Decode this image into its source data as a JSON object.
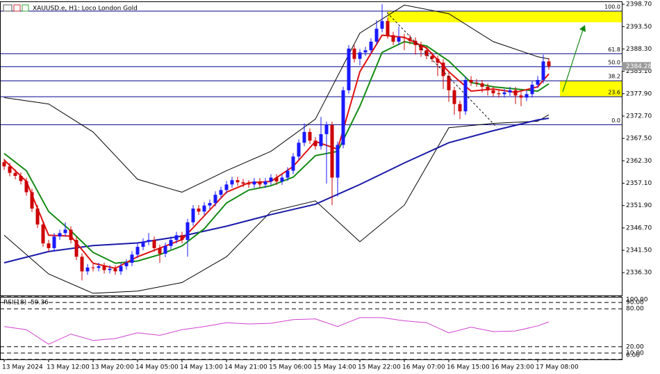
{
  "chart_data": {
    "type": "candlestick",
    "title": "XAUUSD.e, H1: Loco London Gold",
    "up_color": "#1a1aff",
    "down_color": "#cc0000",
    "ylim": [
      2331.0,
      2399.2
    ],
    "yticks": [
      {
        "value": 2398.7,
        "label": "2398.70"
      },
      {
        "value": 2393.5,
        "label": "2393.50"
      },
      {
        "value": 2388.3,
        "label": "2388.30"
      },
      {
        "value": 2383.1,
        "label": "2383.10"
      },
      {
        "value": 2377.9,
        "label": "2377.90"
      },
      {
        "value": 2372.7,
        "label": "2372.70"
      },
      {
        "value": 2367.5,
        "label": "2367.50"
      },
      {
        "value": 2362.3,
        "label": "2362.30"
      },
      {
        "value": 2357.1,
        "label": "2357.10"
      },
      {
        "value": 2351.9,
        "label": "2351.90"
      },
      {
        "value": 2346.7,
        "label": "2346.70"
      },
      {
        "value": 2341.5,
        "label": "2341.50"
      },
      {
        "value": 2336.3,
        "label": "2336.30"
      }
    ],
    "categories": [
      "13 May 2024",
      null,
      null,
      null,
      null,
      null,
      null,
      null,
      "13 May 12:00",
      null,
      null,
      null,
      null,
      null,
      null,
      null,
      "13 May 20:00",
      null,
      null,
      null,
      null,
      null,
      null,
      null,
      "14 May 05:00",
      null,
      null,
      null,
      null,
      null,
      null,
      null,
      "14 May 13:00",
      null,
      null,
      null,
      null,
      null,
      null,
      null,
      "14 May 21:00",
      null,
      null,
      null,
      null,
      null,
      null,
      null,
      "15 May 06:00",
      null,
      null,
      null,
      null,
      null,
      null,
      null,
      "15 May 14:00",
      null,
      null,
      null,
      null,
      null,
      null,
      null,
      "15 May 22:00",
      null,
      null,
      null,
      null,
      null,
      null,
      null,
      "16 May 07:00",
      null,
      null,
      null,
      null,
      null,
      null,
      null,
      "16 May 15:00",
      null,
      null,
      null,
      null,
      null,
      null,
      null,
      "16 May 23:00",
      null,
      null,
      null,
      null,
      null,
      null,
      null,
      "17 May 08:00",
      null,
      null
    ],
    "open": [
      2362.0,
      2361.0,
      2359.5,
      2358.8,
      2357.6,
      2355.0,
      2351.2,
      2347.5,
      2343.1,
      2342.0,
      2344.7,
      2345.5,
      2346.3,
      2343.9,
      2340.0,
      2336.6,
      2337.5,
      2337.4,
      2337.8,
      2336.9,
      2337.2,
      2336.6,
      2337.8,
      2338.6,
      2340.5,
      2342.3,
      2343.5,
      2343.9,
      2342.0,
      2340.7,
      2342.5,
      2343.9,
      2345.0,
      2343.9,
      2348.0,
      2351.2,
      2350.5,
      2351.9,
      2352.5,
      2354.4,
      2355.5,
      2356.8,
      2357.8,
      2357.3,
      2357.0,
      2356.8,
      2357.5,
      2356.8,
      2357.5,
      2358.4,
      2357.5,
      2358.4,
      2360.0,
      2363.3,
      2366.5,
      2369.0,
      2367.0,
      2365.7,
      2368.5,
      2370.6,
      2358.4,
      2366.0,
      2378.7,
      2388.4,
      2386.0,
      2387.5,
      2388.0,
      2390.0,
      2393.0,
      2394.8,
      2391.5,
      2390.0,
      2391.0,
      2390.8,
      2390.2,
      2389.2,
      2388.0,
      2386.7,
      2386.0,
      2385.1,
      2382.0,
      2378.7,
      2375.5,
      2373.8,
      2381.1,
      2380.5,
      2380.3,
      2379.5,
      2378.7,
      2378.0,
      2377.8,
      2378.2,
      2378.7,
      2377.5,
      2377.0,
      2377.8,
      2380.0,
      2381.1,
      2385.4
    ],
    "high": [
      2362.8,
      2361.8,
      2360.3,
      2359.6,
      2358.4,
      2355.8,
      2352.0,
      2348.3,
      2343.9,
      2345.5,
      2346.3,
      2348.0,
      2347.1,
      2344.7,
      2340.8,
      2338.3,
      2338.3,
      2338.6,
      2338.6,
      2338.0,
      2338.0,
      2338.6,
      2339.4,
      2341.3,
      2343.1,
      2344.3,
      2345.5,
      2344.7,
      2342.8,
      2343.3,
      2344.7,
      2345.8,
      2345.8,
      2348.8,
      2352.0,
      2352.0,
      2352.7,
      2353.3,
      2355.2,
      2356.3,
      2357.6,
      2358.6,
      2358.6,
      2358.1,
      2357.8,
      2358.3,
      2358.3,
      2358.3,
      2359.2,
      2359.2,
      2359.2,
      2360.8,
      2364.1,
      2367.3,
      2371.0,
      2369.8,
      2367.8,
      2372.5,
      2371.4,
      2371.4,
      2366.8,
      2379.5,
      2389.2,
      2389.2,
      2388.3,
      2388.8,
      2390.8,
      2395.0,
      2398.7,
      2395.6,
      2392.3,
      2393.5,
      2391.8,
      2391.6,
      2391.0,
      2390.0,
      2388.8,
      2387.5,
      2386.8,
      2385.9,
      2382.8,
      2379.5,
      2376.3,
      2381.9,
      2382.0,
      2381.3,
      2381.1,
      2380.3,
      2379.5,
      2378.8,
      2379.0,
      2379.5,
      2379.5,
      2378.3,
      2378.6,
      2380.8,
      2382.0,
      2387.0,
      2386.2
    ],
    "low": [
      2360.2,
      2358.7,
      2358.0,
      2356.8,
      2354.2,
      2350.4,
      2346.7,
      2342.3,
      2341.2,
      2341.2,
      2343.9,
      2344.7,
      2343.1,
      2339.2,
      2334.5,
      2335.8,
      2336.6,
      2336.6,
      2336.1,
      2336.1,
      2335.8,
      2335.8,
      2337.0,
      2337.8,
      2339.7,
      2341.5,
      2342.7,
      2341.2,
      2338.6,
      2339.9,
      2341.7,
      2343.1,
      2343.1,
      2340.0,
      2347.2,
      2349.7,
      2349.7,
      2351.1,
      2351.7,
      2353.6,
      2354.7,
      2356.0,
      2356.5,
      2356.2,
      2356.0,
      2356.0,
      2356.0,
      2356.0,
      2356.7,
      2356.7,
      2356.7,
      2357.6,
      2359.2,
      2362.5,
      2365.7,
      2366.2,
      2364.9,
      2364.9,
      2357.0,
      2352.0,
      2354.0,
      2365.2,
      2377.9,
      2385.2,
      2384.5,
      2386.7,
      2387.2,
      2389.2,
      2392.2,
      2390.7,
      2389.2,
      2389.2,
      2388.0,
      2389.4,
      2387.0,
      2386.5,
      2385.9,
      2385.2,
      2382.0,
      2379.0,
      2376.0,
      2373.0,
      2372.0,
      2373.0,
      2379.7,
      2379.5,
      2378.2,
      2377.5,
      2377.2,
      2377.0,
      2377.0,
      2377.4,
      2375.5,
      2375.0,
      2376.2,
      2377.0,
      2379.2,
      2380.3,
      2383.5
    ],
    "close": [
      2361.0,
      2359.5,
      2358.8,
      2357.6,
      2355.0,
      2351.2,
      2347.5,
      2343.1,
      2342.0,
      2344.7,
      2345.5,
      2346.3,
      2343.9,
      2340.0,
      2336.6,
      2337.5,
      2337.4,
      2337.8,
      2336.9,
      2337.2,
      2336.6,
      2337.8,
      2338.6,
      2340.5,
      2342.3,
      2343.5,
      2343.9,
      2342.0,
      2340.7,
      2342.5,
      2343.9,
      2345.0,
      2343.9,
      2348.0,
      2351.2,
      2350.5,
      2351.9,
      2352.5,
      2354.4,
      2355.5,
      2356.8,
      2357.8,
      2357.3,
      2357.0,
      2356.8,
      2357.5,
      2356.8,
      2357.5,
      2358.4,
      2357.5,
      2358.4,
      2360.0,
      2363.3,
      2366.5,
      2369.0,
      2367.0,
      2365.7,
      2368.5,
      2370.6,
      2358.4,
      2366.0,
      2378.7,
      2388.4,
      2386.0,
      2387.5,
      2388.0,
      2390.0,
      2393.0,
      2394.8,
      2391.5,
      2390.0,
      2391.0,
      2390.8,
      2390.2,
      2389.2,
      2388.0,
      2386.7,
      2386.0,
      2385.1,
      2382.0,
      2378.7,
      2375.5,
      2373.8,
      2381.1,
      2380.5,
      2380.3,
      2379.5,
      2378.7,
      2378.0,
      2377.8,
      2378.2,
      2378.7,
      2377.5,
      2377.0,
      2377.8,
      2380.0,
      2381.1,
      2385.4,
      2384.28
    ],
    "last_price": 2384.28,
    "overlays": [
      {
        "color": "#000000",
        "x": [
          0,
          8,
          16,
          24,
          32,
          40,
          48,
          56,
          64,
          72,
          80,
          88,
          96,
          98
        ],
        "values": [
          2377.0,
          2375.5,
          2369.0,
          2358.0,
          2355.0,
          2360.0,
          2364.5,
          2372.0,
          2392.0,
          2398.5,
          2396.5,
          2390.0,
          2386.5,
          2386.0
        ]
      },
      {
        "color": "#000000",
        "x": [
          0,
          8,
          16,
          24,
          32,
          40,
          48,
          56,
          64,
          72,
          80,
          88,
          96,
          98
        ],
        "values": [
          2345.0,
          2336.0,
          2331.5,
          2332.0,
          2334.0,
          2340.0,
          2350.5,
          2353.0,
          2343.5,
          2352.0,
          2370.0,
          2371.0,
          2371.5,
          2373.0
        ]
      },
      {
        "color": "#1a1aa8",
        "x": [
          0,
          8,
          16,
          24,
          32,
          40,
          48,
          56,
          64,
          72,
          80,
          88,
          96,
          98
        ],
        "values": [
          2338.6,
          2341.2,
          2342.6,
          2343.2,
          2344.8,
          2347.1,
          2349.8,
          2352.2,
          2356.8,
          2361.8,
          2366.5,
          2369.3,
          2371.8,
          2372.2
        ]
      },
      {
        "color": "#138a13",
        "x": [
          0,
          4,
          8,
          12,
          16,
          20,
          24,
          28,
          32,
          36,
          40,
          44,
          48,
          52,
          56,
          60,
          64,
          68,
          72,
          76,
          80,
          84,
          88,
          92,
          96,
          98
        ],
        "values": [
          2364.0,
          2360.0,
          2350.5,
          2346.0,
          2341.0,
          2338.5,
          2339.0,
          2340.5,
          2342.5,
          2346.5,
          2352.5,
          2355.5,
          2356.5,
          2358.5,
          2363.5,
          2364.5,
          2375.0,
          2387.5,
          2390.0,
          2389.0,
          2385.5,
          2380.5,
          2379.5,
          2379.0,
          2378.5,
          2380.2
        ]
      },
      {
        "color": "#e01010",
        "x": [
          0,
          4,
          8,
          12,
          16,
          20,
          24,
          28,
          32,
          36,
          40,
          44,
          48,
          52,
          56,
          60,
          64,
          68,
          72,
          76,
          80,
          84,
          88,
          92,
          96,
          98
        ],
        "values": [
          2362.5,
          2357.5,
          2345.0,
          2344.8,
          2338.5,
          2337.3,
          2340.0,
          2342.0,
          2344.0,
          2349.5,
          2355.0,
          2357.2,
          2357.5,
          2361.0,
          2366.8,
          2365.0,
          2383.0,
          2391.5,
          2391.0,
          2388.5,
          2383.0,
          2378.5,
          2379.0,
          2378.2,
          2379.5,
          2382.5
        ]
      }
    ],
    "zones": [
      {
        "low": 2394.5,
        "high": 2397.1,
        "start": 69
      },
      {
        "low": 2377.2,
        "high": 2380.9,
        "start": 100
      }
    ],
    "zone_color": "#ffff00",
    "fib_levels": [
      {
        "label": "100.0",
        "price": 2397.1
      },
      {
        "label": "61.8",
        "price": 2387.2
      },
      {
        "label": "50.0",
        "price": 2384.2
      },
      {
        "label": "38.2",
        "price": 2380.9
      },
      {
        "label": "23.6",
        "price": 2377.2
      },
      {
        "label": "0.0",
        "price": 2370.7
      }
    ],
    "fib_color": "#00008b",
    "rsi": {
      "label": "RSI(18)",
      "value": 59.36,
      "color": "#d040d0",
      "x": [
        0,
        4,
        8,
        12,
        16,
        20,
        24,
        28,
        32,
        36,
        40,
        44,
        48,
        52,
        56,
        60,
        64,
        68,
        72,
        76,
        80,
        84,
        88,
        92,
        96,
        98
      ],
      "values": [
        52,
        47,
        24,
        40,
        30,
        33,
        42,
        38,
        47,
        52,
        58,
        56,
        57,
        63,
        64,
        52,
        66,
        66,
        61,
        58,
        42,
        51,
        44,
        45,
        53,
        59.36
      ],
      "ylim": [
        0,
        100
      ],
      "yticks": [
        {
          "value": 100,
          "label": "100.00"
        },
        {
          "value": 90,
          "label": "90.00"
        },
        {
          "value": 80,
          "label": "80.00"
        },
        {
          "value": 20,
          "label": "20.00"
        },
        {
          "value": 10,
          "label": "10.00"
        },
        {
          "value": 0,
          "label": "0.00"
        }
      ]
    }
  }
}
